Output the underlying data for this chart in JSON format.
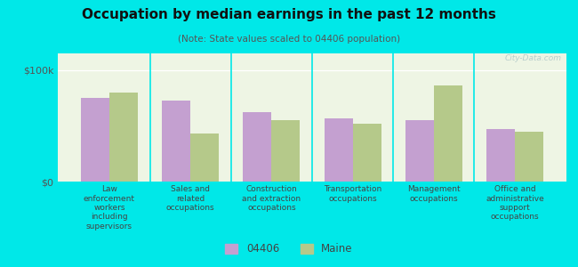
{
  "title": "Occupation by median earnings in the past 12 months",
  "subtitle": "(Note: State values scaled to 04406 population)",
  "categories": [
    "Law\nenforcement\nworkers\nincluding\nsupervisors",
    "Sales and\nrelated\noccupations",
    "Construction\nand extraction\noccupations",
    "Transportation\noccupations",
    "Management\noccupations",
    "Office and\nadministrative\nsupport\noccupations"
  ],
  "values_04406": [
    75000,
    73000,
    62000,
    57000,
    55000,
    47000
  ],
  "values_maine": [
    80000,
    43000,
    55000,
    52000,
    86000,
    45000
  ],
  "color_04406": "#c4a0d0",
  "color_maine": "#b5c98a",
  "background_color": "#00e8e8",
  "plot_bg": "#eef5e4",
  "ylim": [
    0,
    115000
  ],
  "yticks": [
    0,
    100000
  ],
  "ytick_labels": [
    "$0",
    "$100k"
  ],
  "watermark": "City-Data.com",
  "legend_04406": "04406",
  "legend_maine": "Maine",
  "bar_width": 0.35
}
